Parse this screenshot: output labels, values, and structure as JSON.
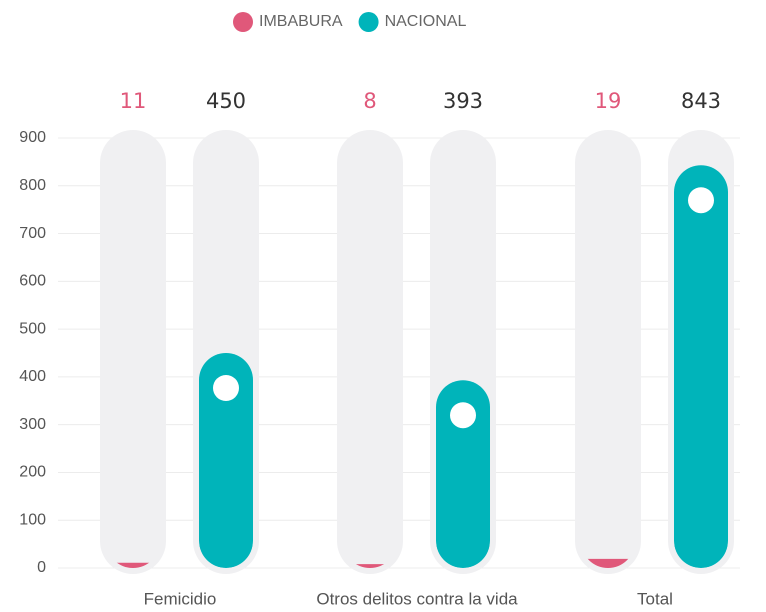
{
  "chart_data": {
    "type": "bar",
    "categories": [
      "Femicidio",
      "Otros delitos contra la vida",
      "Total"
    ],
    "series": [
      {
        "name": "IMBABURA",
        "color": "#e0587a",
        "values": [
          11,
          8,
          19
        ]
      },
      {
        "name": "NACIONAL",
        "color": "#00b4ba",
        "values": [
          450,
          393,
          843
        ]
      }
    ],
    "ylim": [
      0,
      900
    ],
    "yticks": [
      0,
      100,
      200,
      300,
      400,
      500,
      600,
      700,
      800,
      900
    ],
    "grid": true,
    "legend": "top"
  }
}
